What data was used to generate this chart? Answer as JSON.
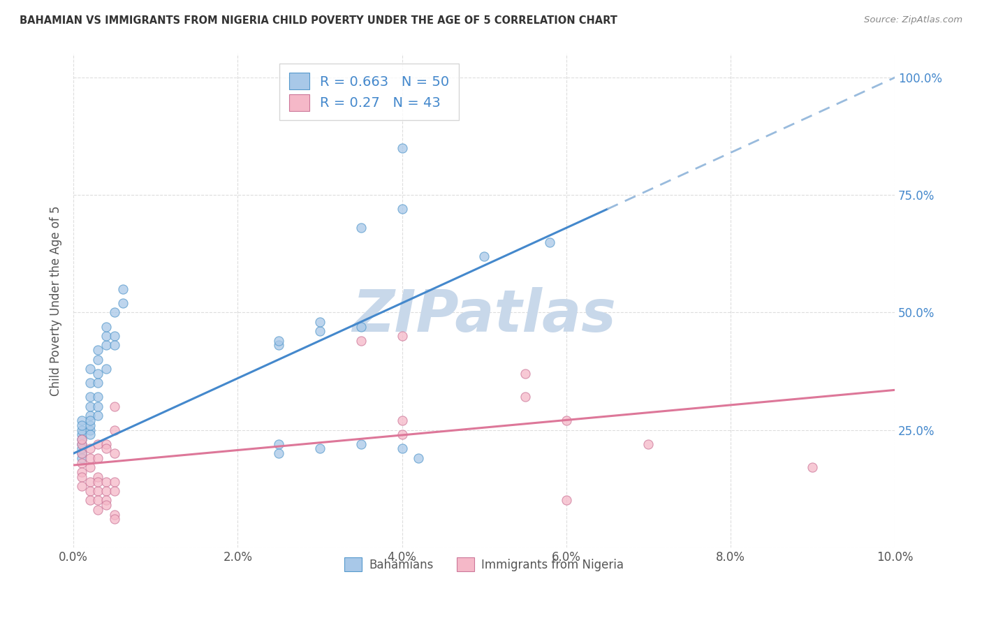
{
  "title": "BAHAMIAN VS IMMIGRANTS FROM NIGERIA CHILD POVERTY UNDER THE AGE OF 5 CORRELATION CHART",
  "source_text": "Source: ZipAtlas.com",
  "ylabel": "Child Poverty Under the Age of 5",
  "xlim": [
    0.0,
    0.1
  ],
  "ylim": [
    0.0,
    1.05
  ],
  "xtick_vals": [
    0.0,
    0.02,
    0.04,
    0.06,
    0.08,
    0.1
  ],
  "xtick_labels": [
    "0.0%",
    "2.0%",
    "4.0%",
    "6.0%",
    "8.0%",
    "10.0%"
  ],
  "ytick_vals": [
    0.0,
    0.25,
    0.5,
    0.75,
    1.0
  ],
  "ytick_labels_right": [
    "",
    "25.0%",
    "50.0%",
    "75.0%",
    "100.0%"
  ],
  "legend_label1": "Bahamians",
  "legend_label2": "Immigrants from Nigeria",
  "R1": 0.663,
  "N1": 50,
  "R2": 0.27,
  "N2": 43,
  "blue_scatter_color": "#a8c8e8",
  "blue_edge_color": "#5599cc",
  "blue_line_color": "#4488cc",
  "pink_scatter_color": "#f5b8c8",
  "pink_edge_color": "#cc7799",
  "pink_line_color": "#dd7799",
  "dashed_line_color": "#99bbdd",
  "blue_regression": [
    0.0,
    0.2,
    0.07,
    0.76
  ],
  "pink_regression": [
    0.0,
    0.175,
    0.1,
    0.335
  ],
  "blue_scatter": [
    [
      0.001,
      0.22
    ],
    [
      0.001,
      0.24
    ],
    [
      0.001,
      0.25
    ],
    [
      0.001,
      0.27
    ],
    [
      0.001,
      0.23
    ],
    [
      0.001,
      0.2
    ],
    [
      0.001,
      0.21
    ],
    [
      0.001,
      0.19
    ],
    [
      0.001,
      0.26
    ],
    [
      0.002,
      0.25
    ],
    [
      0.002,
      0.24
    ],
    [
      0.002,
      0.26
    ],
    [
      0.002,
      0.28
    ],
    [
      0.002,
      0.3
    ],
    [
      0.002,
      0.27
    ],
    [
      0.002,
      0.32
    ],
    [
      0.002,
      0.35
    ],
    [
      0.002,
      0.38
    ],
    [
      0.003,
      0.35
    ],
    [
      0.003,
      0.37
    ],
    [
      0.003,
      0.4
    ],
    [
      0.003,
      0.42
    ],
    [
      0.003,
      0.3
    ],
    [
      0.003,
      0.32
    ],
    [
      0.003,
      0.28
    ],
    [
      0.004,
      0.43
    ],
    [
      0.004,
      0.38
    ],
    [
      0.004,
      0.45
    ],
    [
      0.004,
      0.47
    ],
    [
      0.005,
      0.5
    ],
    [
      0.005,
      0.45
    ],
    [
      0.005,
      0.43
    ],
    [
      0.006,
      0.52
    ],
    [
      0.006,
      0.55
    ],
    [
      0.025,
      0.43
    ],
    [
      0.025,
      0.44
    ],
    [
      0.03,
      0.46
    ],
    [
      0.03,
      0.48
    ],
    [
      0.035,
      0.47
    ],
    [
      0.04,
      0.85
    ],
    [
      0.04,
      0.72
    ],
    [
      0.035,
      0.68
    ],
    [
      0.05,
      0.62
    ],
    [
      0.058,
      0.65
    ],
    [
      0.025,
      0.22
    ],
    [
      0.025,
      0.2
    ],
    [
      0.03,
      0.21
    ],
    [
      0.035,
      0.22
    ],
    [
      0.04,
      0.21
    ],
    [
      0.042,
      0.19
    ]
  ],
  "pink_scatter": [
    [
      0.001,
      0.18
    ],
    [
      0.001,
      0.2
    ],
    [
      0.001,
      0.22
    ],
    [
      0.001,
      0.23
    ],
    [
      0.001,
      0.16
    ],
    [
      0.001,
      0.15
    ],
    [
      0.001,
      0.13
    ],
    [
      0.002,
      0.21
    ],
    [
      0.002,
      0.19
    ],
    [
      0.002,
      0.17
    ],
    [
      0.002,
      0.14
    ],
    [
      0.002,
      0.12
    ],
    [
      0.002,
      0.1
    ],
    [
      0.003,
      0.22
    ],
    [
      0.003,
      0.19
    ],
    [
      0.003,
      0.15
    ],
    [
      0.003,
      0.12
    ],
    [
      0.003,
      0.1
    ],
    [
      0.003,
      0.08
    ],
    [
      0.003,
      0.14
    ],
    [
      0.004,
      0.22
    ],
    [
      0.004,
      0.21
    ],
    [
      0.004,
      0.14
    ],
    [
      0.004,
      0.12
    ],
    [
      0.004,
      0.1
    ],
    [
      0.004,
      0.09
    ],
    [
      0.005,
      0.3
    ],
    [
      0.005,
      0.25
    ],
    [
      0.005,
      0.2
    ],
    [
      0.005,
      0.14
    ],
    [
      0.005,
      0.12
    ],
    [
      0.005,
      0.07
    ],
    [
      0.005,
      0.06
    ],
    [
      0.035,
      0.44
    ],
    [
      0.04,
      0.45
    ],
    [
      0.04,
      0.27
    ],
    [
      0.04,
      0.24
    ],
    [
      0.055,
      0.37
    ],
    [
      0.055,
      0.32
    ],
    [
      0.06,
      0.27
    ],
    [
      0.06,
      0.1
    ],
    [
      0.07,
      0.22
    ],
    [
      0.09,
      0.17
    ]
  ],
  "watermark": "ZIPatlas",
  "watermark_color": "#c8d8ea",
  "background_color": "#ffffff",
  "grid_color": "#dddddd"
}
